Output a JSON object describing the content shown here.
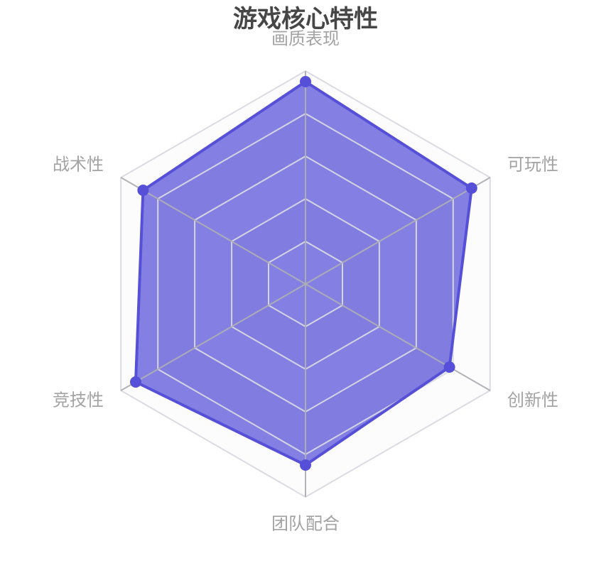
{
  "title": "游戏核心特性",
  "colors": {
    "series": "#5650d8",
    "series_fill_opacity": 0.72,
    "band_light": "#fcfcfd",
    "band_dark": "#f1f1f4",
    "ring_line": "#d9d9e2",
    "axis_line": "#aeaeb4",
    "title_color": "#464646",
    "axis_label_color": "#a3a3a3"
  },
  "chart_data": {
    "type": "radar",
    "title": "游戏核心特性",
    "shape": "polygon",
    "levels": 5,
    "range": [
      0,
      100
    ],
    "grid": true,
    "legend_position": "none",
    "indicators": [
      {
        "name": "画质表现",
        "max": 100
      },
      {
        "name": "可玩性",
        "max": 100
      },
      {
        "name": "创新性",
        "max": 100
      },
      {
        "name": "团队配合",
        "max": 100
      },
      {
        "name": "竞技性",
        "max": 100
      },
      {
        "name": "战术性",
        "max": 100
      }
    ],
    "series": [
      {
        "name": "游戏核心特性",
        "values": [
          95,
          90,
          78,
          85,
          92,
          88
        ]
      }
    ]
  }
}
